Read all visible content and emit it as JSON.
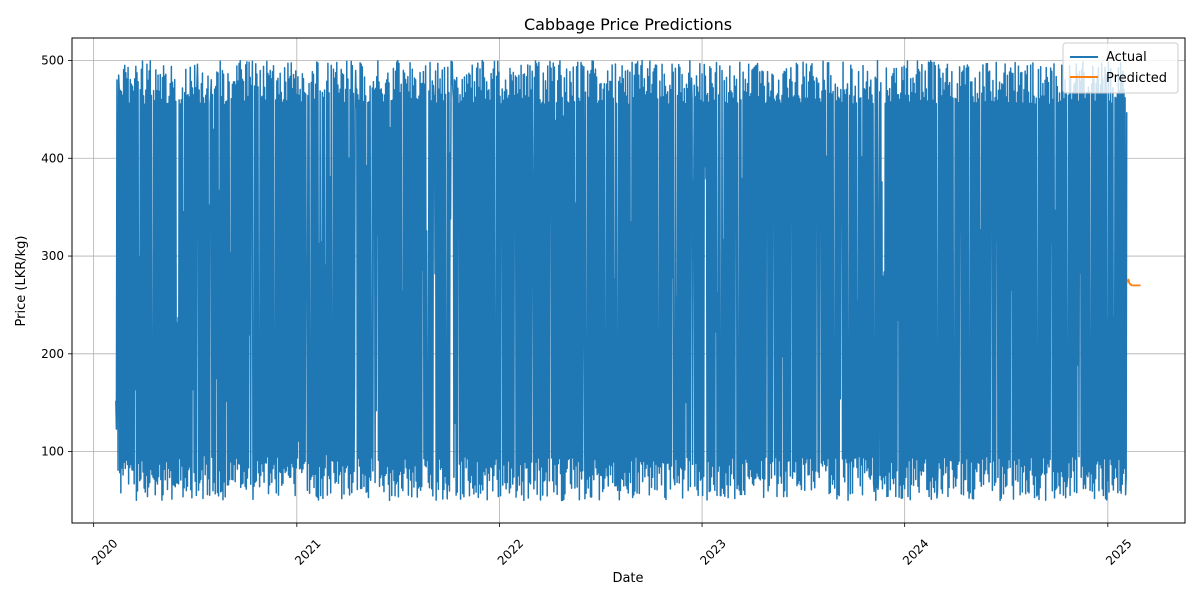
{
  "chart_data": {
    "type": "line",
    "title": "Cabbage Price Predictions",
    "xlabel": "Date",
    "ylabel": "Price (LKR/kg)",
    "xlim": [
      "2019-11-23",
      "2025-05-20"
    ],
    "ylim": [
      27,
      523
    ],
    "x_ticks": [
      "2020",
      "2021",
      "2022",
      "2023",
      "2024",
      "2025"
    ],
    "x_tick_dates": [
      "2020-01-01",
      "2021-01-01",
      "2022-01-01",
      "2023-01-01",
      "2024-01-01",
      "2025-01-01"
    ],
    "y_ticks": [
      100,
      200,
      300,
      400,
      500
    ],
    "grid": true,
    "legend_position": "top-right",
    "actual": {
      "name": "Actual",
      "color": "#1f77b4",
      "start_date": "2020-02-10",
      "end_date": "2025-02-04",
      "frequency": "daily",
      "range": [
        50,
        500
      ],
      "first_values": [
        152,
        123,
        480,
        300,
        81,
        485
      ],
      "last_values": [
        75,
        447
      ]
    },
    "predicted": {
      "name": "Predicted",
      "color": "#ff7f0e",
      "x": [
        "2025-02-05",
        "2025-02-07",
        "2025-02-09",
        "2025-02-11",
        "2025-02-13",
        "2025-02-16",
        "2025-02-20",
        "2025-02-25",
        "2025-03-01"
      ],
      "values": [
        273,
        276,
        272,
        271,
        270,
        270,
        270,
        270,
        270
      ]
    }
  }
}
